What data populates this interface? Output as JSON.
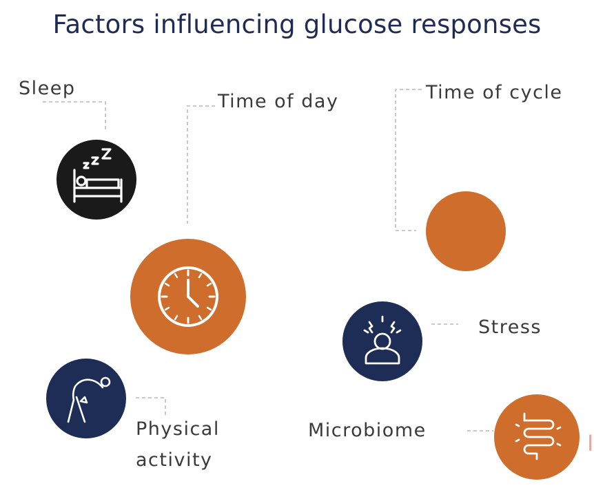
{
  "title": "Factors influencing glucose responses",
  "factors": {
    "sleep": {
      "label": "Sleep",
      "icon": "sleeping-bed-icon"
    },
    "time_of_day": {
      "label": "Time of day",
      "icon": "clock-icon"
    },
    "time_of_cycle": {
      "label": "Time of cycle",
      "icon": ""
    },
    "stress": {
      "label": "Stress",
      "icon": "stressed-person-icon"
    },
    "physical_activity": {
      "label_line1": "Physical",
      "label_line2": "activity",
      "icon": "stretching-person-icon"
    },
    "microbiome": {
      "label": "Microbiome",
      "icon": "intestine-icon"
    }
  },
  "colors": {
    "title": "#1f2b54",
    "orange": "#cf6d2c",
    "navy": "#1e2d55",
    "black": "#1a1a1a",
    "connector": "#c9c9c9"
  }
}
